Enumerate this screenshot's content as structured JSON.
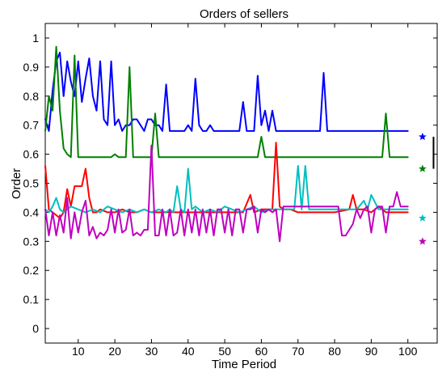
{
  "chart_data": {
    "type": "line",
    "title": "Orders of sellers",
    "xlabel": "Time Period",
    "ylabel": "Order",
    "xlim": [
      1,
      108
    ],
    "ylim": [
      -0.05,
      1.05
    ],
    "xticks": [
      10,
      20,
      30,
      40,
      50,
      60,
      70,
      80,
      90,
      100
    ],
    "yticks": [
      0,
      0.1,
      0.2,
      0.3,
      0.4,
      0.5,
      0.6,
      0.7,
      0.8,
      0.9,
      1
    ],
    "grid": false,
    "legend": "none",
    "series": [
      {
        "color": "#0000ff",
        "x": [
          1,
          2,
          3,
          4,
          5,
          6,
          7,
          8,
          9,
          10,
          11,
          12,
          13,
          14,
          15,
          16,
          17,
          18,
          19,
          20,
          21,
          22,
          23,
          24,
          25,
          26,
          27,
          28,
          29,
          30,
          31,
          32,
          33,
          34,
          35,
          36,
          37,
          38,
          39,
          40,
          41,
          42,
          43,
          44,
          45,
          46,
          47,
          48,
          49,
          50,
          51,
          52,
          53,
          54,
          55,
          56,
          57,
          58,
          59,
          60,
          61,
          62,
          63,
          64,
          65,
          66,
          67,
          68,
          69,
          70,
          71,
          72,
          73,
          74,
          75,
          76,
          77,
          78,
          79,
          80,
          100
        ],
        "values": [
          0.72,
          0.68,
          0.82,
          0.92,
          0.95,
          0.8,
          0.92,
          0.85,
          0.8,
          0.92,
          0.78,
          0.86,
          0.93,
          0.8,
          0.75,
          0.92,
          0.72,
          0.7,
          0.92,
          0.7,
          0.72,
          0.68,
          0.7,
          0.7,
          0.72,
          0.72,
          0.7,
          0.68,
          0.72,
          0.72,
          0.7,
          0.7,
          0.68,
          0.84,
          0.68,
          0.68,
          0.68,
          0.68,
          0.68,
          0.7,
          0.68,
          0.86,
          0.7,
          0.68,
          0.68,
          0.7,
          0.68,
          0.68,
          0.68,
          0.68,
          0.68,
          0.68,
          0.68,
          0.68,
          0.78,
          0.68,
          0.68,
          0.68,
          0.87,
          0.7,
          0.75,
          0.68,
          0.75,
          0.68,
          0.68,
          0.68,
          0.68,
          0.68,
          0.68,
          0.68,
          0.68,
          0.68,
          0.68,
          0.68,
          0.68,
          0.68,
          0.88,
          0.68,
          0.68,
          0.68,
          0.68
        ]
      },
      {
        "color": "#008000",
        "x": [
          1,
          2,
          3,
          4,
          5,
          6,
          7,
          8,
          9,
          10,
          11,
          12,
          13,
          14,
          15,
          16,
          17,
          18,
          19,
          20,
          21,
          22,
          23,
          24,
          25,
          26,
          27,
          28,
          29,
          30,
          31,
          32,
          33,
          34,
          35,
          36,
          37,
          58,
          59,
          60,
          61,
          62,
          63,
          92,
          93,
          94,
          95,
          96,
          100
        ],
        "values": [
          0.68,
          0.8,
          0.75,
          0.97,
          0.75,
          0.62,
          0.6,
          0.59,
          0.94,
          0.59,
          0.59,
          0.59,
          0.59,
          0.59,
          0.59,
          0.59,
          0.59,
          0.59,
          0.59,
          0.6,
          0.59,
          0.59,
          0.59,
          0.9,
          0.59,
          0.59,
          0.59,
          0.59,
          0.59,
          0.59,
          0.74,
          0.59,
          0.59,
          0.59,
          0.59,
          0.59,
          0.59,
          0.59,
          0.59,
          0.66,
          0.59,
          0.59,
          0.59,
          0.59,
          0.59,
          0.74,
          0.59,
          0.59,
          0.59
        ]
      },
      {
        "color": "#ff0000",
        "x": [
          1,
          2,
          3,
          4,
          5,
          6,
          7,
          8,
          9,
          10,
          11,
          12,
          13,
          14,
          15,
          16,
          18,
          20,
          22,
          24,
          26,
          28,
          30,
          35,
          45,
          55,
          57,
          58,
          60,
          62,
          63,
          64,
          65,
          66,
          68,
          70,
          80,
          84,
          85,
          86,
          88,
          90,
          92,
          94,
          96,
          100
        ],
        "values": [
          0.56,
          0.41,
          0.4,
          0.39,
          0.38,
          0.4,
          0.48,
          0.42,
          0.49,
          0.49,
          0.49,
          0.55,
          0.45,
          0.4,
          0.4,
          0.41,
          0.4,
          0.4,
          0.41,
          0.4,
          0.4,
          0.41,
          0.4,
          0.4,
          0.4,
          0.4,
          0.46,
          0.4,
          0.41,
          0.41,
          0.41,
          0.64,
          0.42,
          0.41,
          0.41,
          0.4,
          0.4,
          0.41,
          0.46,
          0.41,
          0.41,
          0.4,
          0.42,
          0.4,
          0.4,
          0.4
        ]
      },
      {
        "color": "#00bfbf",
        "x": [
          1,
          2,
          3,
          4,
          5,
          6,
          8,
          10,
          12,
          14,
          16,
          18,
          20,
          22,
          24,
          26,
          28,
          30,
          32,
          34,
          35,
          36,
          37,
          38,
          39,
          40,
          41,
          42,
          44,
          46,
          48,
          50,
          52,
          54,
          56,
          58,
          60,
          62,
          64,
          66,
          68,
          69,
          70,
          71,
          72,
          73,
          74,
          76,
          78,
          80,
          82,
          84,
          86,
          88,
          89,
          90,
          92,
          94,
          96,
          100
        ],
        "values": [
          0.41,
          0.4,
          0.42,
          0.45,
          0.41,
          0.4,
          0.42,
          0.41,
          0.4,
          0.41,
          0.4,
          0.42,
          0.41,
          0.4,
          0.41,
          0.4,
          0.41,
          0.4,
          0.41,
          0.4,
          0.41,
          0.4,
          0.49,
          0.41,
          0.4,
          0.55,
          0.41,
          0.42,
          0.4,
          0.41,
          0.4,
          0.42,
          0.41,
          0.4,
          0.41,
          0.42,
          0.4,
          0.41,
          0.41,
          0.41,
          0.41,
          0.41,
          0.56,
          0.41,
          0.56,
          0.41,
          0.41,
          0.41,
          0.41,
          0.41,
          0.41,
          0.41,
          0.41,
          0.44,
          0.41,
          0.46,
          0.41,
          0.41,
          0.41,
          0.41
        ]
      },
      {
        "color": "#bf00bf",
        "x": [
          1,
          2,
          3,
          4,
          5,
          6,
          7,
          8,
          9,
          10,
          11,
          12,
          13,
          14,
          15,
          16,
          17,
          18,
          19,
          20,
          21,
          22,
          23,
          24,
          25,
          26,
          27,
          28,
          29,
          30,
          31,
          32,
          33,
          34,
          35,
          36,
          37,
          38,
          39,
          40,
          41,
          42,
          43,
          44,
          45,
          46,
          47,
          48,
          49,
          50,
          51,
          52,
          53,
          54,
          55,
          56,
          57,
          58,
          59,
          60,
          61,
          62,
          63,
          64,
          65,
          66,
          67,
          68,
          69,
          70,
          71,
          72,
          73,
          74,
          75,
          76,
          77,
          78,
          79,
          80,
          81,
          82,
          83,
          84,
          85,
          86,
          87,
          88,
          89,
          90,
          91,
          92,
          93,
          94,
          95,
          96,
          97,
          98,
          99,
          100
        ],
        "values": [
          0.41,
          0.32,
          0.4,
          0.32,
          0.39,
          0.33,
          0.45,
          0.31,
          0.4,
          0.33,
          0.4,
          0.44,
          0.32,
          0.35,
          0.31,
          0.33,
          0.32,
          0.34,
          0.41,
          0.33,
          0.41,
          0.33,
          0.34,
          0.41,
          0.32,
          0.33,
          0.32,
          0.34,
          0.34,
          0.63,
          0.32,
          0.32,
          0.41,
          0.32,
          0.41,
          0.32,
          0.33,
          0.41,
          0.32,
          0.41,
          0.33,
          0.41,
          0.32,
          0.41,
          0.33,
          0.41,
          0.32,
          0.41,
          0.41,
          0.33,
          0.41,
          0.32,
          0.41,
          0.41,
          0.33,
          0.41,
          0.41,
          0.42,
          0.33,
          0.41,
          0.4,
          0.41,
          0.4,
          0.41,
          0.3,
          0.42,
          0.42,
          0.42,
          0.42,
          0.42,
          0.42,
          0.42,
          0.42,
          0.42,
          0.42,
          0.42,
          0.42,
          0.42,
          0.42,
          0.42,
          0.42,
          0.32,
          0.32,
          0.34,
          0.36,
          0.41,
          0.38,
          0.41,
          0.42,
          0.33,
          0.41,
          0.42,
          0.42,
          0.33,
          0.42,
          0.42,
          0.47,
          0.42,
          0.42,
          0.42
        ]
      }
    ],
    "markers": [
      {
        "y": 0.66,
        "color": "#0000ff"
      },
      {
        "y": 0.55,
        "color": "#008000"
      },
      {
        "y": 0.38,
        "color": "#00bfbf"
      },
      {
        "y": 0.3,
        "color": "#bf00bf"
      }
    ],
    "side_bar": {
      "y_from": 0.55,
      "y_to": 0.66,
      "color": "#000000"
    }
  }
}
